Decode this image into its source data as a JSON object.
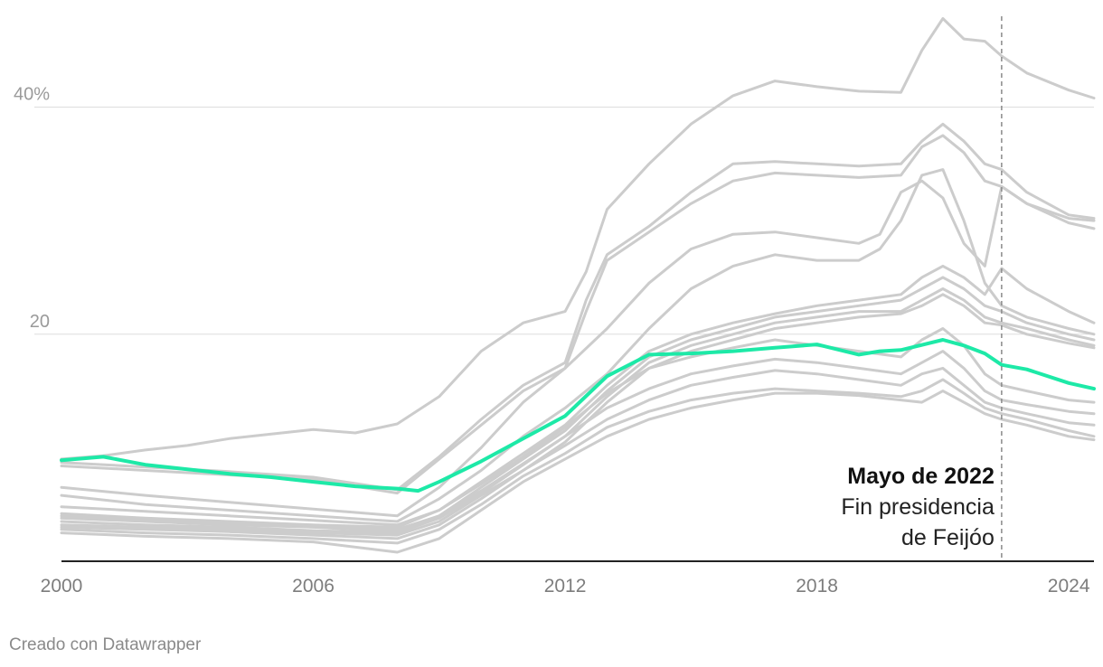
{
  "chart_data": {
    "type": "line",
    "title": "",
    "xlabel": "",
    "ylabel": "",
    "ylim": [
      0,
      48
    ],
    "xlim": [
      2000,
      2024.6
    ],
    "grid": "horizontal",
    "y_ticks": [
      {
        "value": 20,
        "label": "20"
      },
      {
        "value": 40,
        "label": "40%"
      }
    ],
    "x_ticks": [
      {
        "value": 2000,
        "label": "2000"
      },
      {
        "value": 2006,
        "label": "2006"
      },
      {
        "value": 2012,
        "label": "2012"
      },
      {
        "value": 2018,
        "label": "2018"
      },
      {
        "value": 2024,
        "label": "2024"
      }
    ],
    "highlight_color": "#1de9a7",
    "context_color": "#cccccc",
    "series": [
      {
        "highlight": true,
        "x": [
          2000,
          2001,
          2002,
          2003,
          2004,
          2005,
          2006,
          2007,
          2008,
          2008.5,
          2009,
          2010,
          2011,
          2012,
          2013,
          2014,
          2015,
          2016,
          2017,
          2018,
          2019,
          2019.5,
          2020,
          2021,
          2021.5,
          2022,
          2022.4,
          2023,
          2024,
          2024.6
        ],
        "values": [
          8.9,
          9.2,
          8.5,
          8.1,
          7.7,
          7.4,
          7.0,
          6.6,
          6.4,
          6.2,
          7.0,
          8.8,
          10.8,
          12.8,
          16.3,
          18.2,
          18.3,
          18.5,
          18.8,
          19.1,
          18.2,
          18.5,
          18.6,
          19.5,
          19.0,
          18.3,
          17.3,
          16.9,
          15.7,
          15.2
        ]
      },
      {
        "x": [
          2000,
          2001,
          2002,
          2003,
          2004,
          2005,
          2006,
          2007,
          2008,
          2009,
          2010,
          2011,
          2012,
          2012.5,
          2013,
          2014,
          2015,
          2016,
          2017,
          2018,
          2019,
          2020,
          2020.5,
          2021,
          2021.5,
          2022,
          2022.4,
          2023,
          2024,
          2024.6
        ],
        "values": [
          9.0,
          9.3,
          9.8,
          10.2,
          10.8,
          11.2,
          11.6,
          11.3,
          12.1,
          14.5,
          18.5,
          21.0,
          22.0,
          25.5,
          31.0,
          35.0,
          38.5,
          41.0,
          42.3,
          41.8,
          41.4,
          41.3,
          45.0,
          47.8,
          46.0,
          45.8,
          44.5,
          43.0,
          41.5,
          40.8
        ]
      },
      {
        "x": [
          2000,
          2002,
          2004,
          2006,
          2008,
          2009,
          2010,
          2011,
          2012,
          2012.5,
          2013,
          2014,
          2015,
          2016,
          2017,
          2018,
          2019,
          2020,
          2020.5,
          2021,
          2021.5,
          2022,
          2022.4,
          2023,
          2024,
          2024.6
        ],
        "values": [
          8.7,
          8.3,
          7.9,
          7.4,
          6.3,
          9.2,
          12.5,
          15.5,
          17.5,
          23.0,
          27.0,
          29.5,
          32.5,
          35.0,
          35.2,
          35.0,
          34.8,
          35.0,
          37.0,
          38.5,
          37.0,
          35.0,
          34.5,
          32.5,
          30.5,
          30.2
        ]
      },
      {
        "x": [
          2000,
          2002,
          2004,
          2006,
          2008,
          2009,
          2010,
          2011,
          2012,
          2012.5,
          2013,
          2014,
          2015,
          2016,
          2017,
          2018,
          2019,
          2020,
          2020.5,
          2021,
          2021.5,
          2022,
          2022.4,
          2023,
          2024,
          2024.6
        ],
        "values": [
          8.4,
          8.0,
          7.6,
          7.2,
          6.0,
          9.0,
          12.0,
          15.0,
          17.0,
          22.0,
          26.5,
          29.0,
          31.5,
          33.5,
          34.2,
          34.0,
          33.8,
          34.0,
          36.5,
          37.5,
          36.0,
          33.5,
          33.0,
          31.5,
          29.8,
          29.3
        ]
      },
      {
        "x": [
          2000,
          2002,
          2004,
          2006,
          2008,
          2009,
          2010,
          2011,
          2012,
          2013,
          2014,
          2015,
          2016,
          2017,
          2018,
          2019,
          2019.5,
          2020,
          2020.5,
          2021,
          2021.5,
          2022,
          2022.4,
          2023,
          2024,
          2024.6
        ],
        "values": [
          6.5,
          5.8,
          5.2,
          4.6,
          4.0,
          6.5,
          10.0,
          14.0,
          17.0,
          20.5,
          24.5,
          27.5,
          28.8,
          29.0,
          28.5,
          28.0,
          28.8,
          32.5,
          33.5,
          32.0,
          28.0,
          26.0,
          33.0,
          31.5,
          30.2,
          30.0
        ]
      },
      {
        "x": [
          2000,
          2002,
          2004,
          2006,
          2008,
          2009,
          2010,
          2011,
          2012,
          2013,
          2014,
          2015,
          2016,
          2017,
          2018,
          2019,
          2019.5,
          2020,
          2020.5,
          2021,
          2021.5,
          2022,
          2022.4,
          2023,
          2024,
          2024.6
        ],
        "values": [
          5.8,
          5.0,
          4.5,
          4.0,
          3.5,
          5.5,
          8.0,
          11.0,
          13.5,
          16.5,
          20.5,
          24.0,
          26.0,
          27.0,
          26.5,
          26.5,
          27.5,
          30.0,
          34.0,
          34.5,
          30.0,
          24.5,
          22.5,
          21.5,
          20.5,
          20.0
        ]
      },
      {
        "x": [
          2000,
          2002,
          2004,
          2006,
          2008,
          2009,
          2010,
          2011,
          2012,
          2013,
          2014,
          2015,
          2016,
          2017,
          2018,
          2019,
          2020,
          2020.5,
          2021,
          2021.5,
          2022,
          2022.4,
          2023,
          2024,
          2024.6
        ],
        "values": [
          4.2,
          3.8,
          3.5,
          3.2,
          3.0,
          4.5,
          7.0,
          9.5,
          12.0,
          15.5,
          18.5,
          20.0,
          21.0,
          21.8,
          22.5,
          23.0,
          23.5,
          25.0,
          26.0,
          25.0,
          23.5,
          25.8,
          24.0,
          22.0,
          21.0
        ]
      },
      {
        "x": [
          2000,
          2002,
          2004,
          2006,
          2008,
          2009,
          2010,
          2011,
          2012,
          2013,
          2014,
          2015,
          2016,
          2017,
          2018,
          2019,
          2020,
          2020.5,
          2021,
          2021.5,
          2022,
          2022.4,
          2023,
          2024,
          2024.6
        ],
        "values": [
          3.8,
          3.5,
          3.2,
          3.0,
          2.8,
          4.0,
          6.5,
          9.0,
          11.5,
          15.0,
          18.0,
          19.5,
          20.5,
          21.5,
          22.0,
          22.5,
          23.0,
          24.0,
          25.0,
          24.0,
          22.5,
          22.0,
          21.0,
          20.0,
          19.5
        ]
      },
      {
        "x": [
          2000,
          2002,
          2004,
          2006,
          2008,
          2009,
          2010,
          2011,
          2012,
          2013,
          2014,
          2015,
          2016,
          2017,
          2018,
          2019,
          2020,
          2020.5,
          2021,
          2021.5,
          2022,
          2022.4,
          2023,
          2024,
          2024.6
        ],
        "values": [
          3.5,
          3.2,
          3.0,
          2.7,
          2.5,
          3.8,
          6.0,
          8.5,
          11.0,
          14.5,
          17.5,
          19.0,
          20.0,
          21.0,
          21.5,
          22.0,
          22.0,
          23.0,
          24.0,
          23.0,
          21.5,
          21.0,
          20.5,
          19.5,
          19.0
        ]
      },
      {
        "x": [
          2000,
          2002,
          2004,
          2006,
          2008,
          2009,
          2010,
          2011,
          2012,
          2013,
          2014,
          2015,
          2016,
          2017,
          2018,
          2019,
          2020,
          2020.5,
          2021,
          2021.5,
          2022,
          2022.4,
          2023,
          2024,
          2024.6
        ],
        "values": [
          3.2,
          3.0,
          2.8,
          2.5,
          2.3,
          3.5,
          5.8,
          8.0,
          10.5,
          14.0,
          17.0,
          18.5,
          19.5,
          20.5,
          21.0,
          21.5,
          21.8,
          22.5,
          23.5,
          22.5,
          21.0,
          20.8,
          20.0,
          19.2,
          18.8
        ]
      },
      {
        "x": [
          2000,
          2002,
          2004,
          2006,
          2008,
          2009,
          2010,
          2011,
          2012,
          2013,
          2014,
          2015,
          2016,
          2017,
          2018,
          2019,
          2020,
          2020.5,
          2021,
          2021.5,
          2022,
          2022.4,
          2023,
          2024,
          2024.6
        ],
        "values": [
          4.8,
          4.4,
          4.0,
          3.6,
          3.2,
          4.5,
          6.8,
          9.2,
          11.8,
          14.8,
          17.0,
          18.0,
          18.8,
          19.5,
          19.0,
          18.5,
          18.0,
          19.5,
          20.5,
          19.0,
          16.5,
          15.5,
          15.0,
          14.2,
          14.0
        ]
      },
      {
        "x": [
          2000,
          2002,
          2004,
          2006,
          2008,
          2009,
          2010,
          2011,
          2012,
          2013,
          2014,
          2015,
          2016,
          2017,
          2018,
          2019,
          2020,
          2020.5,
          2021,
          2021.5,
          2022,
          2022.4,
          2023,
          2024,
          2024.6
        ],
        "values": [
          4.0,
          3.6,
          3.3,
          3.0,
          2.6,
          4.0,
          6.2,
          8.6,
          11.0,
          13.5,
          15.2,
          16.5,
          17.2,
          17.8,
          17.5,
          17.0,
          16.5,
          17.5,
          18.5,
          17.0,
          15.0,
          14.2,
          13.8,
          13.2,
          13.0
        ]
      },
      {
        "x": [
          2000,
          2002,
          2004,
          2006,
          2008,
          2009,
          2010,
          2011,
          2012,
          2013,
          2014,
          2015,
          2016,
          2017,
          2018,
          2019,
          2020,
          2020.5,
          2021,
          2021.5,
          2022,
          2022.4,
          2023,
          2024,
          2024.6
        ],
        "values": [
          3.0,
          2.8,
          2.6,
          2.3,
          2.0,
          3.2,
          5.5,
          8.0,
          10.2,
          12.5,
          14.2,
          15.5,
          16.2,
          16.8,
          16.5,
          16.0,
          15.5,
          16.5,
          17.0,
          15.5,
          14.0,
          13.5,
          13.0,
          12.2,
          12.0
        ]
      },
      {
        "x": [
          2000,
          2002,
          2004,
          2006,
          2008,
          2009,
          2010,
          2011,
          2012,
          2013,
          2014,
          2015,
          2016,
          2017,
          2018,
          2019,
          2020,
          2020.5,
          2021,
          2021.5,
          2022,
          2022.4,
          2023,
          2024,
          2024.6
        ],
        "values": [
          2.8,
          2.5,
          2.3,
          2.0,
          1.6,
          2.8,
          5.0,
          7.5,
          9.5,
          11.8,
          13.2,
          14.2,
          14.8,
          15.2,
          15.0,
          14.8,
          14.5,
          15.0,
          16.0,
          14.8,
          13.5,
          13.0,
          12.5,
          11.5,
          11.0
        ]
      },
      {
        "x": [
          2000,
          2002,
          2004,
          2006,
          2008,
          2009,
          2010,
          2011,
          2012,
          2013,
          2014,
          2015,
          2016,
          2017,
          2018,
          2019,
          2020,
          2020.5,
          2021,
          2021.5,
          2022,
          2022.4,
          2023,
          2024,
          2024.6
        ],
        "values": [
          2.5,
          2.2,
          2.0,
          1.7,
          0.8,
          2.0,
          4.5,
          7.0,
          9.0,
          11.0,
          12.5,
          13.5,
          14.2,
          14.8,
          14.8,
          14.6,
          14.2,
          14.0,
          15.0,
          14.0,
          13.0,
          12.5,
          12.0,
          11.0,
          10.7
        ]
      }
    ],
    "annotation": {
      "x": 2022.4,
      "title": "Mayo de 2022",
      "line1": "Fin presidencia",
      "line2": "de Feijóo"
    }
  },
  "credit": "Creado con Datawrapper"
}
